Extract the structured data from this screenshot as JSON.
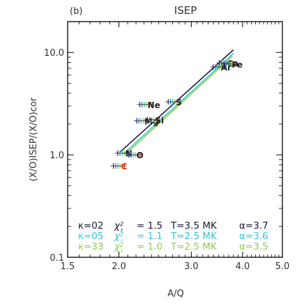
{
  "chart_data": {
    "type": "scatter",
    "title": "ISEP",
    "panel_label": "(b)",
    "xlabel": "A/Q",
    "ylabel": "(X/O)ISEP/(X/O)cor",
    "xscale": "log",
    "yscale": "log",
    "xlim": [
      1.5,
      5.0
    ],
    "ylim": [
      0.1,
      20.0
    ],
    "x_ticks": [
      1.5,
      2.0,
      3.0,
      4.0,
      5.0
    ],
    "x_tick_labels": [
      "1.5",
      "2.0",
      "3.0",
      "4.0",
      "5.0"
    ],
    "y_ticks": [
      0.1,
      1.0,
      10.0
    ],
    "y_tick_labels": [
      "0.1",
      "1.0",
      "10.0"
    ],
    "grid": false,
    "points": [
      {
        "label": "C",
        "x": 2.0,
        "y": 0.78,
        "color": "#e8331c"
      },
      {
        "label": "N",
        "x": 2.05,
        "y": 1.04,
        "color": "#222222"
      },
      {
        "label": "O",
        "x": 2.18,
        "y": 1.0,
        "color": "#222222"
      },
      {
        "label": "Ne",
        "x": 2.32,
        "y": 3.1,
        "color": "#222222"
      },
      {
        "label": "Mg",
        "x": 2.28,
        "y": 2.15,
        "color": "#222222"
      },
      {
        "label": "Si",
        "x": 2.42,
        "y": 2.2,
        "color": "#222222"
      },
      {
        "label": "S",
        "x": 2.72,
        "y": 3.3,
        "color": "#222222"
      },
      {
        "label": "Ar",
        "x": 3.5,
        "y": 7.2,
        "color": "#222222"
      },
      {
        "label": "Ca",
        "x": 3.62,
        "y": 7.9,
        "color": "#222222"
      },
      {
        "label": "Fe",
        "x": 3.72,
        "y": 7.7,
        "color": "#222222"
      }
    ],
    "series": [
      {
        "name": "κ=02",
        "chi2": "1.5",
        "T": "3.5 MK",
        "alpha": "3.7",
        "color": "#1a1a3a",
        "p0": [
          2.02,
          1.08
        ],
        "p1": [
          3.8,
          10.6
        ]
      },
      {
        "name": "κ=05",
        "chi2": "1.1",
        "T": "2.5 MK",
        "alpha": "3.6",
        "color": "#2ec7dd",
        "p0": [
          2.05,
          1.02
        ],
        "p1": [
          3.8,
          9.8
        ]
      },
      {
        "name": "κ=33",
        "chi2": "1.0",
        "T": "2.5 MK",
        "alpha": "3.5",
        "color": "#8fd23a",
        "p0": [
          2.06,
          0.99
        ],
        "p1": [
          3.78,
          9.2
        ]
      }
    ],
    "stat_label_prefix": "χ",
    "stat_label_sub": "r",
    "legend_placement": "bottom-left"
  }
}
